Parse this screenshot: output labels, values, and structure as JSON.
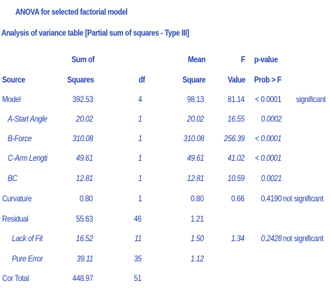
{
  "titles": {
    "main": "ANOVA for selected factorial model",
    "sub": "Analysis of variance table [Partial sum of squares - Type III]"
  },
  "header": {
    "source": "Source",
    "ss1": "Sum of",
    "ss2": "Squares",
    "df": "df",
    "ms1": "Mean",
    "ms2": "Square",
    "f1": "F",
    "f2": "Value",
    "p1": "p-value",
    "p2": "Prob > F"
  },
  "rows": [
    {
      "source": "Model",
      "ss": "392.53",
      "df": "4",
      "ms": "98.13",
      "f": "81.14",
      "p": "< 0.0001",
      "note": "significant",
      "italic": false,
      "indent": 0
    },
    {
      "source": "A-Start Angle",
      "ss": "20.02",
      "df": "1",
      "ms": "20.02",
      "f": "16.55",
      "p": "0.0002",
      "note": "",
      "italic": true,
      "indent": 8
    },
    {
      "source": "B-Force",
      "ss": "310.08",
      "df": "1",
      "ms": "310.08",
      "f": "256.39",
      "p": "< 0.0001",
      "note": "",
      "italic": true,
      "indent": 8
    },
    {
      "source": "C-Arm Lengti",
      "ss": "49.61",
      "df": "1",
      "ms": "49.61",
      "f": "41.02",
      "p": "< 0.0001",
      "note": "",
      "italic": true,
      "indent": 8
    },
    {
      "source": "BC",
      "ss": "12.81",
      "df": "1",
      "ms": "12.81",
      "f": "10.59",
      "p": "0.0021",
      "note": "",
      "italic": true,
      "indent": 8
    },
    {
      "source": "Curvature",
      "ss": "0.80",
      "df": "1",
      "ms": "0.80",
      "f": "0.66",
      "p": "0.4190",
      "note": "not significant",
      "italic": false,
      "indent": 0
    },
    {
      "source": "Residual",
      "ss": "55.63",
      "df": "46",
      "ms": "1.21",
      "f": "",
      "p": "",
      "note": "",
      "italic": false,
      "indent": 0
    },
    {
      "source": "Lack of Fit",
      "ss": "16.52",
      "df": "11",
      "ms": "1.50",
      "f": "1.34",
      "p": "0.2428",
      "note": "not significant",
      "italic": true,
      "indent": 14
    },
    {
      "source": "Pure Error",
      "ss": "39.11",
      "df": "35",
      "ms": "1.12",
      "f": "",
      "p": "",
      "note": "",
      "italic": true,
      "indent": 14
    },
    {
      "source": "Cor Total",
      "ss": "448.97",
      "df": "51",
      "ms": "",
      "f": "",
      "p": "",
      "note": "",
      "italic": false,
      "indent": 0
    }
  ]
}
